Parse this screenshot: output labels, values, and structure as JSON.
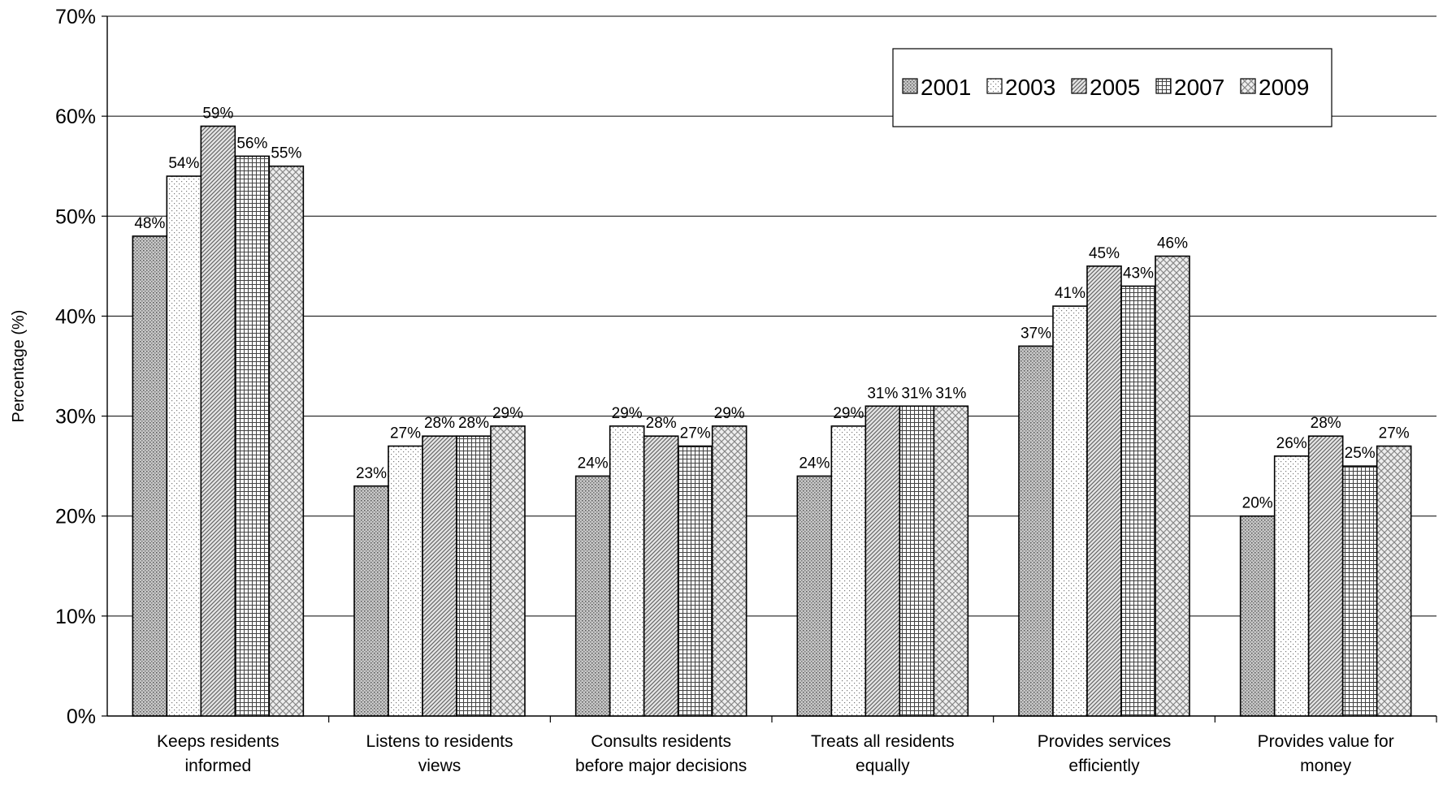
{
  "chart_data": {
    "type": "bar",
    "title": "",
    "ylabel": "Percentage (%)",
    "xlabel": "",
    "ylim": [
      0,
      70
    ],
    "yticks": [
      "0%",
      "10%",
      "20%",
      "30%",
      "40%",
      "50%",
      "60%",
      "70%"
    ],
    "grid": true,
    "legend_position": "top-right",
    "categories": [
      [
        "Keeps residents",
        "informed"
      ],
      [
        "Listens to residents",
        "views"
      ],
      [
        "Consults residents",
        "before major decisions"
      ],
      [
        "Treats all residents",
        "equally"
      ],
      [
        "Provides services",
        "efficiently"
      ],
      [
        "Provides value for",
        "money"
      ]
    ],
    "series": [
      {
        "name": "2001",
        "pattern": "dots-dense",
        "values": [
          48,
          23,
          24,
          24,
          37,
          20
        ]
      },
      {
        "name": "2003",
        "pattern": "dots-sparse",
        "values": [
          54,
          27,
          29,
          29,
          41,
          26
        ]
      },
      {
        "name": "2005",
        "pattern": "diagonal",
        "values": [
          59,
          28,
          28,
          31,
          45,
          28
        ]
      },
      {
        "name": "2007",
        "pattern": "grid",
        "values": [
          56,
          28,
          27,
          31,
          43,
          25
        ]
      },
      {
        "name": "2009",
        "pattern": "diamond",
        "values": [
          55,
          29,
          29,
          31,
          46,
          27
        ]
      }
    ],
    "value_suffix": "%"
  }
}
